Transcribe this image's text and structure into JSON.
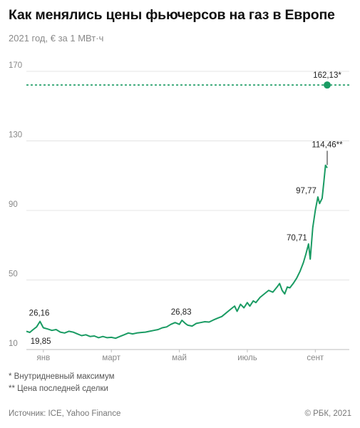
{
  "header": {
    "title": "Как менялись цены фьючерсов на газ в Европе",
    "subtitle": "2021 год, € за 1 МВт·ч"
  },
  "colors": {
    "line": "#1a9b63",
    "grid": "#e4e4e4",
    "axis": "#bdbdbd"
  },
  "chart_data": {
    "type": "line",
    "ylim": [
      10,
      175
    ],
    "yticks": [
      10,
      50,
      90,
      130,
      170
    ],
    "xlim": [
      0,
      38
    ],
    "xticks": [
      {
        "label": "янв",
        "pos": 2
      },
      {
        "label": "март",
        "pos": 10
      },
      {
        "label": "май",
        "pos": 18
      },
      {
        "label": "июль",
        "pos": 26
      },
      {
        "label": "сент",
        "pos": 34
      }
    ],
    "series": [
      {
        "values": [
          [
            0,
            20.5
          ],
          [
            0.4,
            19.85
          ],
          [
            0.8,
            21.5
          ],
          [
            1.2,
            23
          ],
          [
            1.6,
            26.16
          ],
          [
            2.0,
            22.5
          ],
          [
            2.5,
            21.8
          ],
          [
            3,
            21
          ],
          [
            3.5,
            21.5
          ],
          [
            4,
            20
          ],
          [
            4.5,
            19.5
          ],
          [
            5,
            20.5
          ],
          [
            5.5,
            20
          ],
          [
            6,
            19
          ],
          [
            6.5,
            18
          ],
          [
            7,
            18.5
          ],
          [
            7.5,
            17.5
          ],
          [
            8,
            17.8
          ],
          [
            8.5,
            16.8
          ],
          [
            9,
            17.5
          ],
          [
            9.5,
            16.8
          ],
          [
            10,
            17
          ],
          [
            10.5,
            16.5
          ],
          [
            11,
            17.5
          ],
          [
            11.5,
            18.5
          ],
          [
            12,
            19.5
          ],
          [
            12.5,
            19
          ],
          [
            13,
            19.5
          ],
          [
            13.5,
            19.8
          ],
          [
            14,
            20
          ],
          [
            14.5,
            20.5
          ],
          [
            15,
            21
          ],
          [
            15.5,
            21.5
          ],
          [
            16,
            22.5
          ],
          [
            16.5,
            23
          ],
          [
            17,
            24.5
          ],
          [
            17.5,
            25.5
          ],
          [
            18,
            24.5
          ],
          [
            18.3,
            26.83
          ],
          [
            18.7,
            25
          ],
          [
            19,
            24
          ],
          [
            19.5,
            23.5
          ],
          [
            20,
            25
          ],
          [
            20.5,
            25.5
          ],
          [
            21,
            26
          ],
          [
            21.5,
            25.8
          ],
          [
            22,
            27
          ],
          [
            22.5,
            28
          ],
          [
            23,
            29
          ],
          [
            23.5,
            31
          ],
          [
            24,
            33
          ],
          [
            24.5,
            35
          ],
          [
            24.8,
            32
          ],
          [
            25.2,
            36
          ],
          [
            25.6,
            34
          ],
          [
            26,
            37
          ],
          [
            26.3,
            35
          ],
          [
            26.7,
            38
          ],
          [
            27,
            37
          ],
          [
            27.5,
            40
          ],
          [
            28,
            42
          ],
          [
            28.5,
            44
          ],
          [
            29,
            43
          ],
          [
            29.5,
            46
          ],
          [
            29.8,
            48
          ],
          [
            30.1,
            44
          ],
          [
            30.4,
            42
          ],
          [
            30.7,
            46
          ],
          [
            31,
            45.5
          ],
          [
            31.4,
            48
          ],
          [
            31.8,
            51
          ],
          [
            32.2,
            55
          ],
          [
            32.6,
            60
          ],
          [
            32.9,
            65
          ],
          [
            33.2,
            70.71
          ],
          [
            33.4,
            62
          ],
          [
            33.7,
            80
          ],
          [
            34.0,
            90
          ],
          [
            34.3,
            97.77
          ],
          [
            34.5,
            94
          ],
          [
            34.8,
            97
          ],
          [
            35.0,
            106
          ],
          [
            35.2,
            116
          ],
          [
            35.4,
            114.46
          ]
        ]
      }
    ],
    "reference_line": {
      "value": 162.13,
      "label": "162,13*",
      "x": 35.4
    },
    "point_labels": [
      {
        "x": 0.4,
        "y": 19.85,
        "text": "19,85",
        "anchor": "start",
        "dx": 1,
        "dy": 16
      },
      {
        "x": 1.6,
        "y": 26.16,
        "text": "26,16",
        "anchor": "middle",
        "dx": -1,
        "dy": -8
      },
      {
        "x": 18.3,
        "y": 26.83,
        "text": "26,83",
        "anchor": "middle",
        "dx": -1,
        "dy": -8
      },
      {
        "x": 33.2,
        "y": 70.71,
        "text": "70,71",
        "anchor": "end",
        "dx": -2,
        "dy": -5
      },
      {
        "x": 34.3,
        "y": 97.77,
        "text": "97,77",
        "anchor": "end",
        "dx": -2,
        "dy": -5
      },
      {
        "x": 35.4,
        "y": 114.46,
        "text": "114,46**",
        "anchor": "middle",
        "dx": 0,
        "dy": -29
      }
    ]
  },
  "notes": {
    "n1": "* Внутридневный максимум",
    "n2": "** Цена последней сделки"
  },
  "footer": {
    "source": "Источник: ICE, Yahoo Finance",
    "copyright": "© РБК, 2021"
  }
}
